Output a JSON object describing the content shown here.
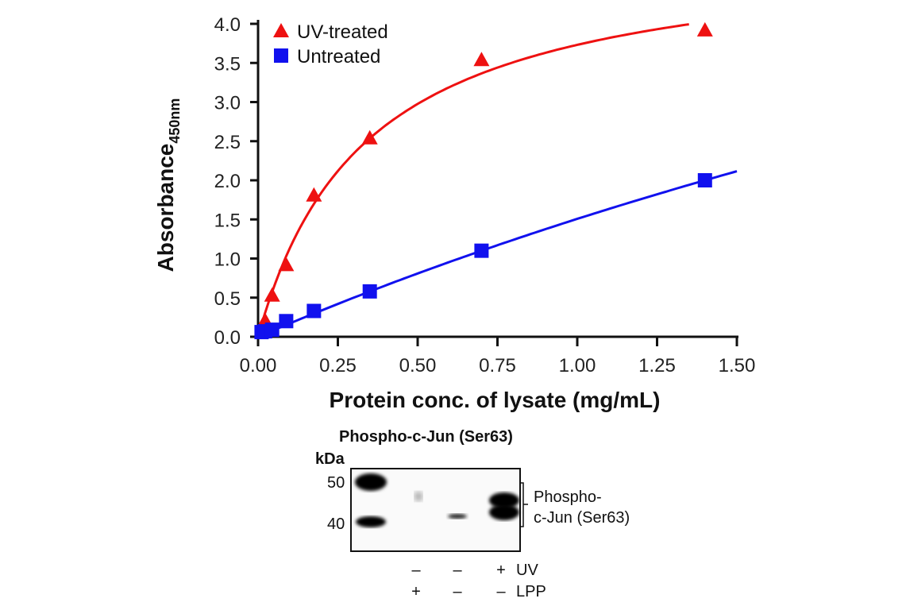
{
  "chart_data": {
    "type": "scatter",
    "xlabel": "Protein conc. of lysate (mg/mL)",
    "ylabel": "Absorbance",
    "ylabel_subscript": "450nm",
    "xlim": [
      0,
      1.5
    ],
    "ylim": [
      0,
      4.0
    ],
    "xticks": [
      "0.00",
      "0.25",
      "0.50",
      "0.75",
      "1.00",
      "1.25",
      "1.50"
    ],
    "yticks": [
      "0.0",
      "0.5",
      "1.0",
      "1.5",
      "2.0",
      "2.5",
      "3.0",
      "3.5",
      "4.0"
    ],
    "legend_position": "top-left",
    "series": [
      {
        "name": "UV-treated",
        "color": "#ee1111",
        "marker": "triangle",
        "x": [
          0.022,
          0.044,
          0.088,
          0.175,
          0.35,
          0.7,
          1.4
        ],
        "y": [
          0.21,
          0.53,
          0.92,
          1.81,
          2.54,
          3.54,
          3.92
        ],
        "fit": {
          "model": "hyperbola",
          "max": 5.0,
          "k": 0.34,
          "x_end": 1.35
        }
      },
      {
        "name": "Untreated",
        "color": "#1111ee",
        "marker": "square",
        "x": [
          0.011,
          0.022,
          0.044,
          0.088,
          0.175,
          0.35,
          0.7,
          1.4
        ],
        "y": [
          0.06,
          0.07,
          0.09,
          0.2,
          0.33,
          0.58,
          1.1,
          2.0
        ],
        "fit": {
          "model": "hyperbola",
          "max": 11.0,
          "k": 6.3,
          "x_end": 1.5
        }
      }
    ]
  },
  "blot": {
    "title": "Phospho-c-Jun (Ser63)",
    "unit": "kDa",
    "markers": [
      "50",
      "40"
    ],
    "band_label_line1": "Phospho-",
    "band_label_line2": "c-Jun (Ser63)",
    "row1_label": "UV",
    "row1": [
      "–",
      "–",
      "+"
    ],
    "row2_label": "LPP",
    "row2": [
      "+",
      "–",
      "–"
    ]
  }
}
